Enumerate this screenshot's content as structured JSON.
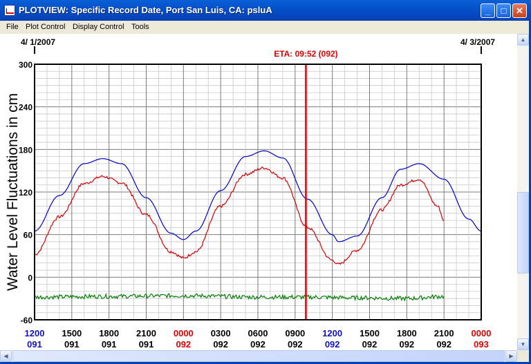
{
  "window": {
    "title": "PLOTVIEW: Specific Record Date, Port San Luis, CA: psluA",
    "minimize_label": "_",
    "maximize_label": "□",
    "close_label": "✕"
  },
  "menu": [
    "File",
    "Plot Control",
    "Display Control",
    "Tools"
  ],
  "plot": {
    "start_date": "4/ 1/2007",
    "end_date": "4/ 3/2007",
    "eta_label": "ETA: 09:52 (092)"
  },
  "chart_data": {
    "type": "line",
    "ylabel": "Water Level Fluctuations in cm",
    "ylim": [
      -60,
      300
    ],
    "yticks": [
      -60,
      0,
      60,
      120,
      180,
      240,
      300
    ],
    "x_unit": "hours since 1200 day 091",
    "xlim": [
      0,
      36
    ],
    "x_ticks": [
      {
        "time": "1200",
        "day": "091",
        "color": "#1010c8",
        "day_color": "#1010c8"
      },
      {
        "time": "1500",
        "day": "091",
        "color": "#000000",
        "day_color": "#000000"
      },
      {
        "time": "1800",
        "day": "091",
        "color": "#000000",
        "day_color": "#000000"
      },
      {
        "time": "2100",
        "day": "091",
        "color": "#000000",
        "day_color": "#000000"
      },
      {
        "time": "0000",
        "day": "092",
        "color": "#e00000",
        "day_color": "#e00000"
      },
      {
        "time": "0300",
        "day": "092",
        "color": "#000000",
        "day_color": "#000000"
      },
      {
        "time": "0600",
        "day": "092",
        "color": "#000000",
        "day_color": "#000000"
      },
      {
        "time": "0900",
        "day": "092",
        "color": "#000000",
        "day_color": "#000000"
      },
      {
        "time": "1200",
        "day": "092",
        "color": "#1010c8",
        "day_color": "#1010c8"
      },
      {
        "time": "1500",
        "day": "092",
        "color": "#000000",
        "day_color": "#000000"
      },
      {
        "time": "1800",
        "day": "092",
        "color": "#000000",
        "day_color": "#000000"
      },
      {
        "time": "2100",
        "day": "092",
        "color": "#000000",
        "day_color": "#000000"
      },
      {
        "time": "0000",
        "day": "093",
        "color": "#e00000",
        "day_color": "#e00000"
      }
    ],
    "eta_x": 21.87,
    "series": [
      {
        "color": "#0000c8",
        "x": [
          0,
          2,
          4,
          5.5,
          7,
          9,
          11,
          12,
          13,
          15,
          17,
          18.5,
          20,
          22,
          24,
          24.5,
          26,
          28,
          29.5,
          31,
          33,
          35,
          36
        ],
        "y": [
          65,
          115,
          160,
          167,
          160,
          112,
          62,
          53,
          65,
          122,
          170,
          178,
          168,
          110,
          60,
          50,
          58,
          112,
          152,
          160,
          138,
          82,
          65
        ]
      },
      {
        "color": "#d00000",
        "noise": 2,
        "x": [
          0,
          2,
          4,
          5.5,
          7,
          9,
          11,
          12,
          13,
          15,
          17,
          18.5,
          20,
          22,
          24,
          24.5,
          26,
          28,
          29.5,
          31,
          32.5,
          33
        ],
        "y": [
          32,
          85,
          132,
          142,
          133,
          88,
          36,
          27,
          36,
          100,
          145,
          154,
          140,
          70,
          24,
          18,
          38,
          95,
          130,
          138,
          100,
          80
        ]
      },
      {
        "color": "#008000",
        "noise": 3,
        "x": [
          0,
          6,
          12,
          18,
          22,
          26,
          30,
          33
        ],
        "y": [
          -28,
          -27,
          -26,
          -28,
          -28,
          -29,
          -30,
          -27
        ]
      }
    ]
  }
}
